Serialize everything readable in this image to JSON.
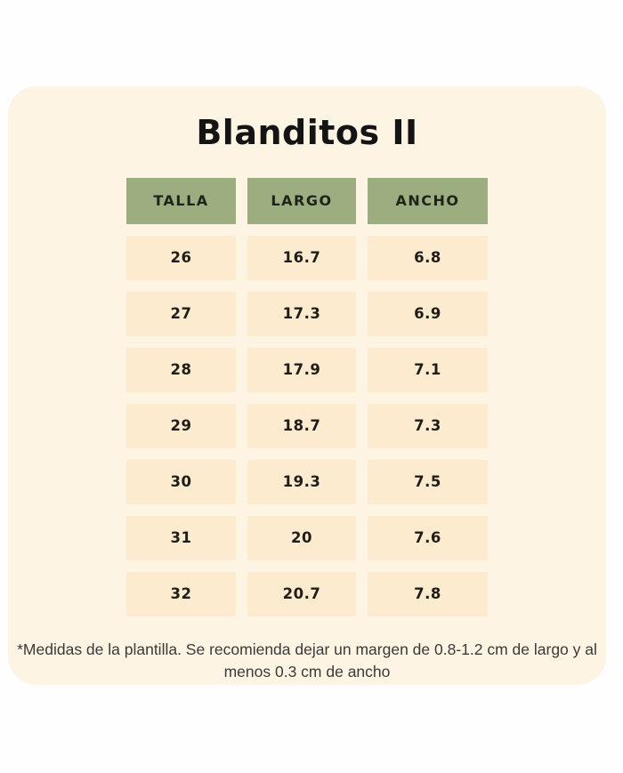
{
  "title": "Blanditos II",
  "table": {
    "headers": [
      "TALLA",
      "LARGO",
      "ANCHO"
    ],
    "rows": [
      [
        "26",
        "16.7",
        "6.8"
      ],
      [
        "27",
        "17.3",
        "6.9"
      ],
      [
        "28",
        "17.9",
        "7.1"
      ],
      [
        "29",
        "18.7",
        "7.3"
      ],
      [
        "30",
        "19.3",
        "7.5"
      ],
      [
        "31",
        "20",
        "7.6"
      ],
      [
        "32",
        "20.7",
        "7.8"
      ]
    ]
  },
  "footnote": "*Medidas de la plantilla. Se recomienda dejar un margen de 0.8-1.2 cm de largo y al menos 0.3 cm de ancho",
  "colors": {
    "page_background": "#fefefe",
    "card_background": "#fdf4e4",
    "header_background": "#9cad80",
    "cell_background": "#fcebce",
    "title_text": "#141414",
    "cell_text": "#201d18",
    "footnote_text": "#3a3a3a"
  },
  "chart_data": {
    "type": "table",
    "title": "Blanditos II",
    "columns": [
      "TALLA",
      "LARGO",
      "ANCHO"
    ],
    "rows": [
      [
        26,
        16.7,
        6.8
      ],
      [
        27,
        17.3,
        6.9
      ],
      [
        28,
        17.9,
        7.1
      ],
      [
        29,
        18.7,
        7.3
      ],
      [
        30,
        19.3,
        7.5
      ],
      [
        31,
        20,
        7.6
      ],
      [
        32,
        20.7,
        7.8
      ]
    ],
    "units": "cm",
    "note": "*Medidas de la plantilla. Se recomienda dejar un margen de 0.8-1.2 cm de largo y al menos 0.3 cm de ancho"
  }
}
